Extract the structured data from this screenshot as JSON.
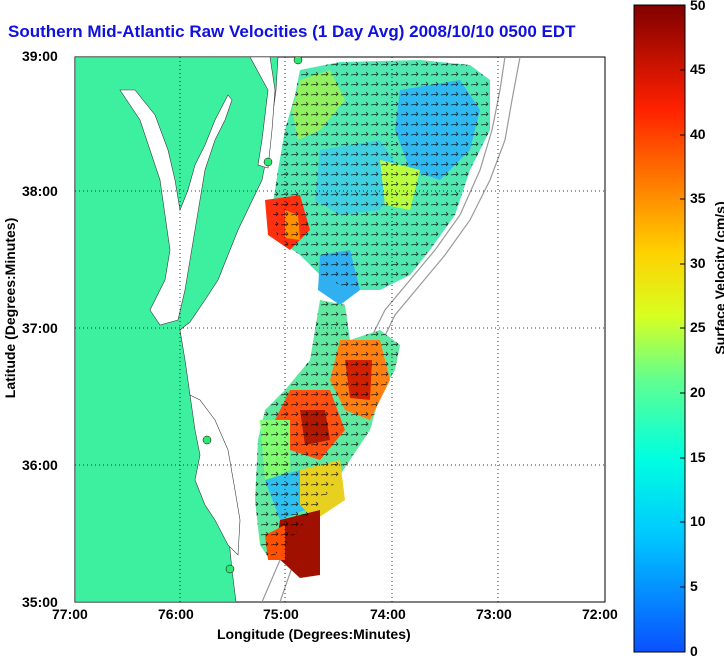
{
  "title": "Southern Mid-Atlantic Raw Velocities (1 Day Avg) 2008/10/10 0500 EDT",
  "xlabel": "Longitude (Degrees:Minutes)",
  "ylabel": "Latitude (Degrees:Minutes)",
  "colorbar": {
    "label": "Surface Velocity (cm/s)",
    "min": 0,
    "max": 50,
    "ticks": [
      "0",
      "5",
      "10",
      "15",
      "20",
      "25",
      "30",
      "35",
      "40",
      "45",
      "50"
    ]
  },
  "axes": {
    "x_ticks": [
      "77:00",
      "76:00",
      "75:00",
      "74:00",
      "73:00",
      "72:00"
    ],
    "y_ticks": [
      "39:00",
      "38:00",
      "37:00",
      "36:00",
      "35:00"
    ]
  },
  "colors": {
    "land": "#3cf0a0",
    "water": "#ffffff",
    "title": "#1010e0"
  }
}
